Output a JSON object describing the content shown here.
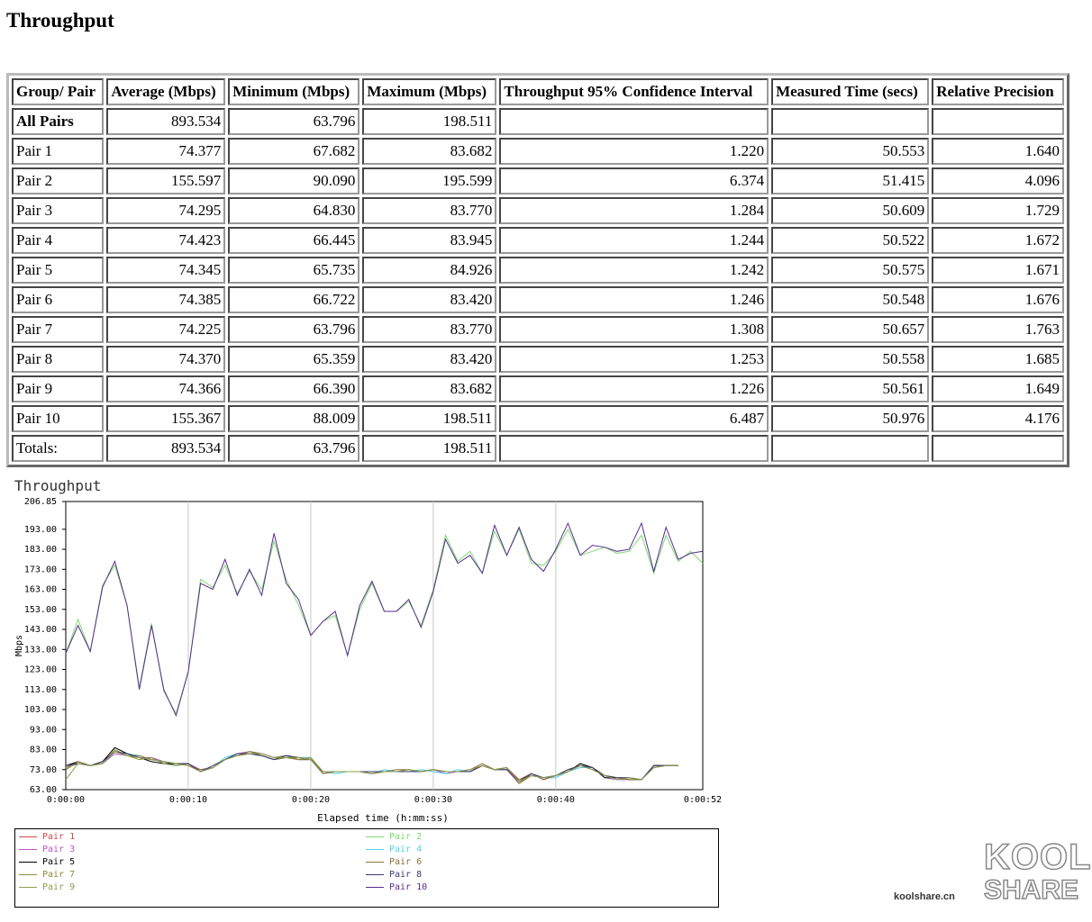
{
  "page": {
    "title": "Throughput"
  },
  "table": {
    "headers": [
      "Group/ Pair",
      "Average (Mbps)",
      "Minimum (Mbps)",
      "Maximum (Mbps)",
      "Throughput 95% Confidence Interval",
      "Measured Time (secs)",
      "Relative Precision"
    ],
    "rows": [
      [
        "All Pairs",
        "893.534",
        "63.796",
        "198.511",
        "",
        "",
        ""
      ],
      [
        "Pair 1",
        "74.377",
        "67.682",
        "83.682",
        "1.220",
        "50.553",
        "1.640"
      ],
      [
        "Pair 2",
        "155.597",
        "90.090",
        "195.599",
        "6.374",
        "51.415",
        "4.096"
      ],
      [
        "Pair 3",
        "74.295",
        "64.830",
        "83.770",
        "1.284",
        "50.609",
        "1.729"
      ],
      [
        "Pair 4",
        "74.423",
        "66.445",
        "83.945",
        "1.244",
        "50.522",
        "1.672"
      ],
      [
        "Pair 5",
        "74.345",
        "65.735",
        "84.926",
        "1.242",
        "50.575",
        "1.671"
      ],
      [
        "Pair 6",
        "74.385",
        "66.722",
        "83.420",
        "1.246",
        "50.548",
        "1.676"
      ],
      [
        "Pair 7",
        "74.225",
        "63.796",
        "83.770",
        "1.308",
        "50.657",
        "1.763"
      ],
      [
        "Pair 8",
        "74.370",
        "65.359",
        "83.420",
        "1.253",
        "50.558",
        "1.685"
      ],
      [
        "Pair 9",
        "74.366",
        "66.390",
        "83.682",
        "1.226",
        "50.561",
        "1.649"
      ],
      [
        "Pair 10",
        "155.367",
        "88.009",
        "198.511",
        "6.487",
        "50.976",
        "4.176"
      ],
      [
        "Totals:",
        "893.534",
        "63.796",
        "198.511",
        "",
        "",
        ""
      ]
    ]
  },
  "chart_data": {
    "type": "line",
    "title": "Throughput",
    "xlabel": "Elapsed time (h:mm:ss)",
    "ylabel": "Mbps",
    "xlim": [
      0,
      52
    ],
    "ylim": [
      63.0,
      206.85
    ],
    "x_ticks": [
      0,
      10,
      20,
      30,
      40,
      52
    ],
    "x_tick_labels": [
      "0:00:00",
      "0:00:10",
      "0:00:20",
      "0:00:30",
      "0:00:40",
      "0:00:52"
    ],
    "y_ticks": [
      63.0,
      73.0,
      83.0,
      93.0,
      103.0,
      113.0,
      123.0,
      133.0,
      143.0,
      153.0,
      163.0,
      173.0,
      183.0,
      193.0,
      206.85
    ],
    "y_tick_labels": [
      "63.00",
      "73.00",
      "83.00",
      "93.00",
      "103.00",
      "113.00",
      "123.00",
      "133.00",
      "143.00",
      "153.00",
      "163.00",
      "173.00",
      "183.00",
      "193.00",
      "206.85"
    ],
    "grid": true,
    "legend_position": "bottom",
    "series": [
      {
        "name": "Pair 1",
        "color": "#d04a4a",
        "x": [
          0,
          1,
          2,
          3,
          4,
          5,
          6,
          7,
          8,
          9,
          10,
          11,
          12,
          13,
          14,
          15,
          16,
          17,
          18,
          19,
          20,
          21,
          22,
          23,
          24,
          25,
          26,
          27,
          28,
          29,
          30,
          31,
          32,
          33,
          34,
          35,
          36,
          37,
          38,
          39,
          40,
          41,
          42,
          43,
          44,
          45,
          46,
          47,
          48,
          49,
          50
        ],
        "values": [
          74,
          77,
          75,
          76,
          82,
          80,
          79,
          78,
          77,
          76,
          75,
          72,
          74,
          78,
          80,
          81,
          80,
          78,
          79,
          78,
          78,
          71,
          72,
          72,
          72,
          71,
          72,
          72,
          73,
          72,
          73,
          72,
          72,
          73,
          75,
          73,
          74,
          68,
          70,
          69,
          70,
          72,
          75,
          73,
          70,
          69,
          69,
          68,
          74,
          75,
          75
        ]
      },
      {
        "name": "Pair 2",
        "color": "#7ddc6e",
        "x": [
          0,
          1,
          2,
          3,
          4,
          5,
          6,
          7,
          8,
          9,
          10,
          11,
          12,
          13,
          14,
          15,
          16,
          17,
          18,
          19,
          20,
          21,
          22,
          23,
          24,
          25,
          26,
          27,
          28,
          29,
          30,
          31,
          32,
          33,
          34,
          35,
          36,
          37,
          38,
          39,
          40,
          41,
          42,
          43,
          44,
          45,
          46,
          47,
          48,
          49,
          50,
          51,
          52
        ],
        "values": [
          131,
          148,
          132,
          165,
          175,
          155,
          114,
          146,
          112,
          101,
          122,
          168,
          164,
          175,
          161,
          172,
          163,
          187,
          168,
          155,
          140,
          147,
          150,
          130,
          153,
          166,
          152,
          152,
          157,
          145,
          163,
          190,
          177,
          182,
          171,
          192,
          180,
          193,
          176,
          175,
          182,
          193,
          180,
          182,
          184,
          181,
          182,
          190,
          171,
          190,
          177,
          182,
          176
        ]
      },
      {
        "name": "Pair 3",
        "color": "#c050c0",
        "x": [
          0,
          1,
          2,
          3,
          4,
          5,
          6,
          7,
          8,
          9,
          10,
          11,
          12,
          13,
          14,
          15,
          16,
          17,
          18,
          19,
          20,
          21,
          22,
          23,
          24,
          25,
          26,
          27,
          28,
          29,
          30,
          31,
          32,
          33,
          34,
          35,
          36,
          37,
          38,
          39,
          40,
          41,
          42,
          43,
          44,
          45,
          46,
          47,
          48,
          49,
          50
        ],
        "values": [
          75,
          76,
          75,
          76,
          81,
          80,
          79,
          79,
          77,
          76,
          76,
          73,
          74,
          78,
          81,
          82,
          81,
          79,
          79,
          78,
          78,
          72,
          72,
          72,
          72,
          72,
          72,
          72,
          73,
          72,
          73,
          71,
          72,
          72,
          75,
          73,
          73,
          66,
          71,
          68,
          70,
          73,
          75,
          74,
          69,
          68,
          68,
          68,
          75,
          75,
          75
        ]
      },
      {
        "name": "Pair 4",
        "color": "#50d0e8",
        "x": [
          0,
          1,
          2,
          3,
          4,
          5,
          6,
          7,
          8,
          9,
          10,
          11,
          12,
          13,
          14,
          15,
          16,
          17,
          18,
          19,
          20,
          21,
          22,
          23,
          24,
          25,
          26,
          27,
          28,
          29,
          30,
          31,
          32,
          33,
          34,
          35,
          36,
          37,
          38,
          39,
          40,
          41,
          42,
          43,
          44,
          45,
          46,
          47,
          48,
          49,
          50
        ],
        "values": [
          74,
          76,
          75,
          77,
          82,
          81,
          80,
          78,
          77,
          75,
          76,
          72,
          74,
          79,
          81,
          81,
          80,
          78,
          80,
          79,
          79,
          72,
          71,
          72,
          72,
          71,
          73,
          72,
          72,
          73,
          72,
          71,
          73,
          72,
          75,
          73,
          74,
          67,
          70,
          69,
          69,
          72,
          74,
          74,
          70,
          68,
          69,
          68,
          74,
          75,
          75
        ]
      },
      {
        "name": "Pair 5",
        "color": "#000000",
        "x": [
          0,
          1,
          2,
          3,
          4,
          5,
          6,
          7,
          8,
          9,
          10,
          11,
          12,
          13,
          14,
          15,
          16,
          17,
          18,
          19,
          20,
          21,
          22,
          23,
          24,
          25,
          26,
          27,
          28,
          29,
          30,
          31,
          32,
          33,
          34,
          35,
          36,
          37,
          38,
          39,
          40,
          41,
          42,
          43,
          44,
          45,
          46,
          47,
          48,
          49,
          50
        ],
        "values": [
          75,
          77,
          75,
          77,
          84,
          81,
          79,
          77,
          76,
          76,
          76,
          72,
          74,
          78,
          80,
          81,
          80,
          78,
          79,
          79,
          78,
          72,
          72,
          72,
          72,
          71,
          72,
          72,
          72,
          72,
          73,
          72,
          72,
          72,
          75,
          73,
          74,
          67,
          70,
          69,
          70,
          72,
          76,
          74,
          69,
          69,
          68,
          68,
          75,
          75,
          75
        ]
      },
      {
        "name": "Pair 6",
        "color": "#8a6e3a",
        "x": [
          0,
          1,
          2,
          3,
          4,
          5,
          6,
          7,
          8,
          9,
          10,
          11,
          12,
          13,
          14,
          15,
          16,
          17,
          18,
          19,
          20,
          21,
          22,
          23,
          24,
          25,
          26,
          27,
          28,
          29,
          30,
          31,
          32,
          33,
          34,
          35,
          36,
          37,
          38,
          39,
          40,
          41,
          42,
          43,
          44,
          45,
          46,
          47,
          48,
          49,
          50
        ],
        "values": [
          73,
          77,
          75,
          76,
          82,
          80,
          80,
          78,
          77,
          76,
          75,
          73,
          74,
          78,
          80,
          82,
          81,
          79,
          80,
          78,
          78,
          71,
          72,
          72,
          72,
          72,
          72,
          73,
          73,
          72,
          73,
          72,
          72,
          73,
          76,
          73,
          73,
          68,
          71,
          68,
          70,
          73,
          75,
          73,
          70,
          68,
          69,
          68,
          74,
          75,
          75
        ]
      },
      {
        "name": "Pair 7",
        "color": "#8a8a3a",
        "x": [
          0,
          1,
          2,
          3,
          4,
          5,
          6,
          7,
          8,
          9,
          10,
          11,
          12,
          13,
          14,
          15,
          16,
          17,
          18,
          19,
          20,
          21,
          22,
          23,
          24,
          25,
          26,
          27,
          28,
          29,
          30,
          31,
          32,
          33,
          34,
          35,
          36,
          37,
          38,
          39,
          40,
          41,
          42,
          43,
          44,
          45,
          46,
          47,
          48,
          49,
          50
        ],
        "values": [
          74,
          76,
          75,
          76,
          83,
          80,
          78,
          79,
          76,
          75,
          76,
          72,
          74,
          78,
          80,
          82,
          80,
          78,
          79,
          78,
          79,
          72,
          72,
          72,
          72,
          71,
          72,
          72,
          73,
          72,
          73,
          72,
          72,
          72,
          75,
          73,
          74,
          66,
          70,
          69,
          70,
          72,
          75,
          74,
          70,
          69,
          68,
          68,
          74,
          75,
          75
        ]
      },
      {
        "name": "Pair 8",
        "color": "#3a3a70",
        "x": [
          0,
          1,
          2,
          3,
          4,
          5,
          6,
          7,
          8,
          9,
          10,
          11,
          12,
          13,
          14,
          15,
          16,
          17,
          18,
          19,
          20,
          21,
          22,
          23,
          24,
          25,
          26,
          27,
          28,
          29,
          30,
          31,
          32,
          33,
          34,
          35,
          36,
          37,
          38,
          39,
          40,
          41,
          42,
          43,
          44,
          45,
          46,
          47,
          48,
          49,
          50
        ],
        "values": [
          75,
          76,
          75,
          77,
          82,
          81,
          79,
          78,
          77,
          76,
          76,
          72,
          75,
          78,
          81,
          81,
          80,
          78,
          80,
          79,
          78,
          72,
          72,
          72,
          72,
          72,
          72,
          72,
          72,
          72,
          73,
          72,
          72,
          72,
          75,
          73,
          73,
          67,
          71,
          69,
          70,
          73,
          75,
          74,
          70,
          69,
          69,
          68,
          75,
          75,
          75
        ]
      },
      {
        "name": "Pair 9",
        "color": "#8aa050",
        "x": [
          0,
          1,
          2,
          3,
          4,
          5,
          6,
          7,
          8,
          9,
          10,
          11,
          12,
          13,
          14,
          15,
          16,
          17,
          18,
          19,
          20,
          21,
          22,
          23,
          24,
          25,
          26,
          27,
          28,
          29,
          30,
          31,
          32,
          33,
          34,
          35,
          36,
          37,
          38,
          39,
          40,
          41,
          42,
          43,
          44,
          45,
          46,
          47,
          48,
          49,
          50
        ],
        "values": [
          68,
          76,
          75,
          76,
          82,
          80,
          79,
          78,
          77,
          76,
          75,
          72,
          74,
          78,
          80,
          81,
          81,
          79,
          79,
          79,
          78,
          72,
          72,
          72,
          72,
          71,
          72,
          72,
          73,
          72,
          73,
          72,
          72,
          73,
          75,
          73,
          74,
          67,
          70,
          69,
          70,
          72,
          75,
          73,
          70,
          68,
          69,
          68,
          74,
          75,
          75
        ]
      },
      {
        "name": "Pair 10",
        "color": "#5a2a90",
        "x": [
          0,
          1,
          2,
          3,
          4,
          5,
          6,
          7,
          8,
          9,
          10,
          11,
          12,
          13,
          14,
          15,
          16,
          17,
          18,
          19,
          20,
          21,
          22,
          23,
          24,
          25,
          26,
          27,
          28,
          29,
          30,
          31,
          32,
          33,
          34,
          35,
          36,
          37,
          38,
          39,
          40,
          41,
          42,
          43,
          44,
          45,
          46,
          47,
          48,
          49,
          50,
          51,
          52
        ],
        "values": [
          131,
          145,
          132,
          164,
          177,
          155,
          113,
          145,
          113,
          100,
          122,
          166,
          163,
          178,
          160,
          173,
          160,
          191,
          166,
          158,
          140,
          147,
          152,
          130,
          155,
          167,
          152,
          152,
          158,
          144,
          162,
          188,
          176,
          180,
          171,
          195,
          180,
          194,
          178,
          172,
          183,
          196,
          180,
          185,
          184,
          182,
          183,
          196,
          172,
          194,
          178,
          181,
          182
        ]
      }
    ]
  },
  "legend": {
    "items": [
      "Pair 1",
      "Pair 2",
      "Pair 3",
      "Pair 4",
      "Pair 5",
      "Pair 6",
      "Pair 7",
      "Pair 8",
      "Pair 9",
      "Pair 10"
    ]
  },
  "watermark": {
    "site": "koolshare.cn",
    "logo_top": "KOOL",
    "logo_bottom": "SHARE"
  }
}
